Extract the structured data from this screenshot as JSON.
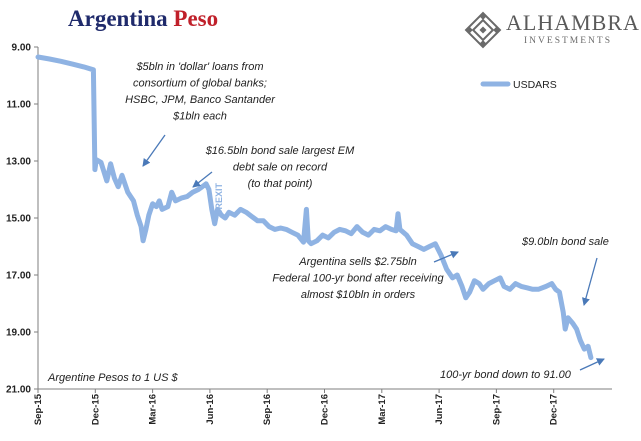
{
  "header": {
    "title_main": "Argentina",
    "title_accent": "Peso",
    "logo_name": "ALHAMBRA",
    "logo_sub": "INVESTMENTS"
  },
  "colors": {
    "title": "#1f2a6b",
    "accent": "#c0202a",
    "series": "#8fb3e3",
    "annotation_arrow": "#4a79b8",
    "text": "#222222",
    "brexit_label": "#8fb3e3"
  },
  "chart_data": {
    "type": "line",
    "title": "Argentina Peso",
    "ylabel": "Argentine Pesos to 1 US $",
    "y_inverted": true,
    "ylim": [
      9.0,
      21.0
    ],
    "y_ticks": [
      "9.00",
      "11.00",
      "13.00",
      "15.00",
      "17.00",
      "19.00",
      "21.00"
    ],
    "x_ticks": [
      "Sep-15",
      "Dec-15",
      "Mar-16",
      "Jun-16",
      "Sep-16",
      "Dec-16",
      "Mar-17",
      "Jun-17",
      "Sep-17",
      "Dec-17"
    ],
    "grid": false,
    "legend": {
      "position": "top-right",
      "entries": [
        "USDARS"
      ]
    },
    "series": [
      {
        "name": "USDARS",
        "x_unit": "months since Sep-15 (tick spacing = 3 months)",
        "points": [
          [
            0,
            9.35
          ],
          [
            0.6,
            9.42
          ],
          [
            1.2,
            9.5
          ],
          [
            1.8,
            9.6
          ],
          [
            2.4,
            9.7
          ],
          [
            2.9,
            9.8
          ],
          [
            2.98,
            13.3
          ],
          [
            3.05,
            12.95
          ],
          [
            3.3,
            13.05
          ],
          [
            3.6,
            13.7
          ],
          [
            3.8,
            13.1
          ],
          [
            4.0,
            13.6
          ],
          [
            4.2,
            13.9
          ],
          [
            4.4,
            13.5
          ],
          [
            4.7,
            14.1
          ],
          [
            5.0,
            14.4
          ],
          [
            5.2,
            14.9
          ],
          [
            5.4,
            15.3
          ],
          [
            5.5,
            15.8
          ],
          [
            5.65,
            15.4
          ],
          [
            5.8,
            14.9
          ],
          [
            6.0,
            14.5
          ],
          [
            6.2,
            14.6
          ],
          [
            6.35,
            14.4
          ],
          [
            6.5,
            14.7
          ],
          [
            6.8,
            14.6
          ],
          [
            7.0,
            14.1
          ],
          [
            7.2,
            14.4
          ],
          [
            7.5,
            14.3
          ],
          [
            7.8,
            14.25
          ],
          [
            8.1,
            14.1
          ],
          [
            8.4,
            14.0
          ],
          [
            8.6,
            13.9
          ],
          [
            8.8,
            13.8
          ],
          [
            8.95,
            14.0
          ],
          [
            9.1,
            14.7
          ],
          [
            9.25,
            15.2
          ],
          [
            9.4,
            14.7
          ],
          [
            9.6,
            14.9
          ],
          [
            9.8,
            15.0
          ],
          [
            10.0,
            14.8
          ],
          [
            10.3,
            14.9
          ],
          [
            10.6,
            14.7
          ],
          [
            10.9,
            14.8
          ],
          [
            11.2,
            14.95
          ],
          [
            11.5,
            15.1
          ],
          [
            11.8,
            15.1
          ],
          [
            12.1,
            15.3
          ],
          [
            12.4,
            15.4
          ],
          [
            12.7,
            15.35
          ],
          [
            13.0,
            15.4
          ],
          [
            13.3,
            15.5
          ],
          [
            13.6,
            15.6
          ],
          [
            13.9,
            15.85
          ],
          [
            14.05,
            14.7
          ],
          [
            14.15,
            15.8
          ],
          [
            14.3,
            15.9
          ],
          [
            14.6,
            15.8
          ],
          [
            14.9,
            15.6
          ],
          [
            15.2,
            15.7
          ],
          [
            15.5,
            15.5
          ],
          [
            15.8,
            15.4
          ],
          [
            16.1,
            15.45
          ],
          [
            16.4,
            15.55
          ],
          [
            16.7,
            15.3
          ],
          [
            17.0,
            15.5
          ],
          [
            17.3,
            15.6
          ],
          [
            17.6,
            15.4
          ],
          [
            17.9,
            15.45
          ],
          [
            18.2,
            15.3
          ],
          [
            18.5,
            15.4
          ],
          [
            18.75,
            15.45
          ],
          [
            18.85,
            14.85
          ],
          [
            18.95,
            15.4
          ],
          [
            19.3,
            15.6
          ],
          [
            19.6,
            15.9
          ],
          [
            19.9,
            16.0
          ],
          [
            20.2,
            16.1
          ],
          [
            20.5,
            16.0
          ],
          [
            20.8,
            15.9
          ],
          [
            21.1,
            16.3
          ],
          [
            21.4,
            16.8
          ],
          [
            21.7,
            17.1
          ],
          [
            21.95,
            17.0
          ],
          [
            22.2,
            17.4
          ],
          [
            22.4,
            17.8
          ],
          [
            22.6,
            17.6
          ],
          [
            22.85,
            17.2
          ],
          [
            23.1,
            17.3
          ],
          [
            23.3,
            17.5
          ],
          [
            23.6,
            17.3
          ],
          [
            23.9,
            17.2
          ],
          [
            24.2,
            17.1
          ],
          [
            24.4,
            17.4
          ],
          [
            24.7,
            17.5
          ],
          [
            25.0,
            17.3
          ],
          [
            25.3,
            17.4
          ],
          [
            25.6,
            17.45
          ],
          [
            25.9,
            17.5
          ],
          [
            26.2,
            17.5
          ],
          [
            26.6,
            17.4
          ],
          [
            26.9,
            17.3
          ],
          [
            27.1,
            17.5
          ],
          [
            27.3,
            17.6
          ],
          [
            27.5,
            18.3
          ],
          [
            27.6,
            18.9
          ],
          [
            27.75,
            18.5
          ],
          [
            28.0,
            18.7
          ],
          [
            28.2,
            18.9
          ],
          [
            28.4,
            19.3
          ],
          [
            28.6,
            19.6
          ],
          [
            28.8,
            19.5
          ],
          [
            28.95,
            19.9
          ]
        ]
      }
    ],
    "annotations": [
      {
        "lines": [
          "$5bln in 'dollar' loans from",
          "consortium of global banks;",
          "HSBC, JPM, Banco Santander",
          "$1bln each"
        ]
      },
      {
        "lines": [
          "$16.5bln bond sale largest EM",
          "debt sale on record",
          "(to that point)"
        ]
      },
      {
        "lines": [
          "BREXIT"
        ]
      },
      {
        "lines": [
          "Argentina sells $2.75bln",
          "Federal 100-yr bond after receiving",
          "almost $10bln in orders"
        ]
      },
      {
        "lines": [
          "$9.0bln bond sale"
        ]
      },
      {
        "lines": [
          "100-yr bond down to 91.00"
        ]
      },
      {
        "lines": [
          "Argentine Pesos to 1 US $"
        ]
      }
    ]
  }
}
